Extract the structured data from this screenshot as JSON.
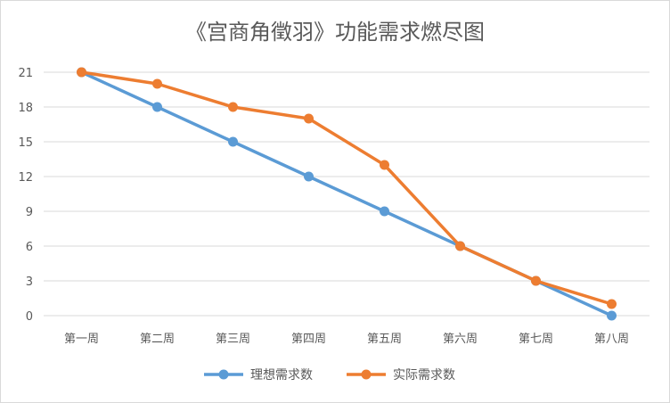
{
  "chart_data": {
    "type": "line",
    "title": "《宫商角徵羽》功能需求燃尽图",
    "categories": [
      "第一周",
      "第二周",
      "第三周",
      "第四周",
      "第五周",
      "第六周",
      "第七周",
      "第八周"
    ],
    "yticks": [
      "0",
      "3",
      "6",
      "9",
      "12",
      "15",
      "18",
      "21"
    ],
    "ylim": [
      0,
      21
    ],
    "grid": true,
    "legend": "bottom",
    "series": [
      {
        "name": "理想需求数",
        "color": "#5b9bd5",
        "values": [
          21,
          18,
          15,
          12,
          9,
          6,
          3,
          0
        ]
      },
      {
        "name": "实际需求数",
        "color": "#ed7d31",
        "values": [
          21,
          20,
          18,
          17,
          13,
          6,
          3,
          1
        ]
      }
    ]
  }
}
